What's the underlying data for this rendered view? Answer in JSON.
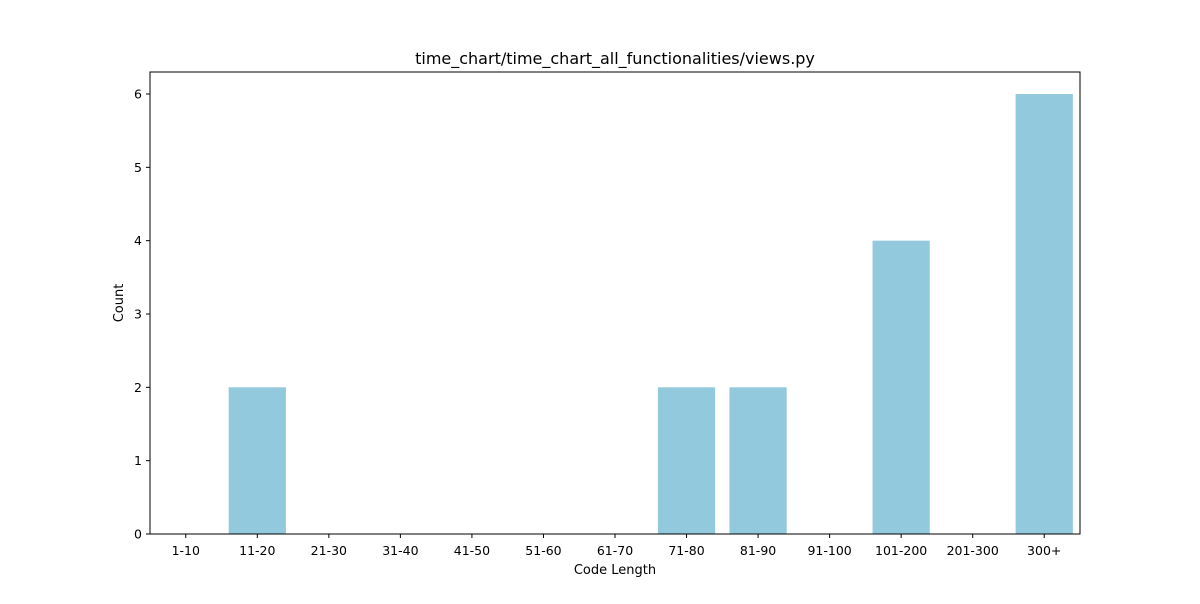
{
  "chart_data": {
    "type": "bar",
    "title": "time_chart/time_chart_all_functionalities/views.py",
    "xlabel": "Code Length",
    "ylabel": "Count",
    "categories": [
      "1-10",
      "11-20",
      "21-30",
      "31-40",
      "41-50",
      "51-60",
      "61-70",
      "71-80",
      "81-90",
      "91-100",
      "101-200",
      "201-300",
      "300+"
    ],
    "values": [
      0,
      2,
      0,
      0,
      0,
      0,
      0,
      2,
      2,
      0,
      4,
      0,
      6
    ],
    "yticks": [
      0,
      1,
      2,
      3,
      4,
      5,
      6
    ],
    "ylim": [
      0,
      6.3
    ],
    "grid": false,
    "bar_color": "#92c9dd"
  }
}
